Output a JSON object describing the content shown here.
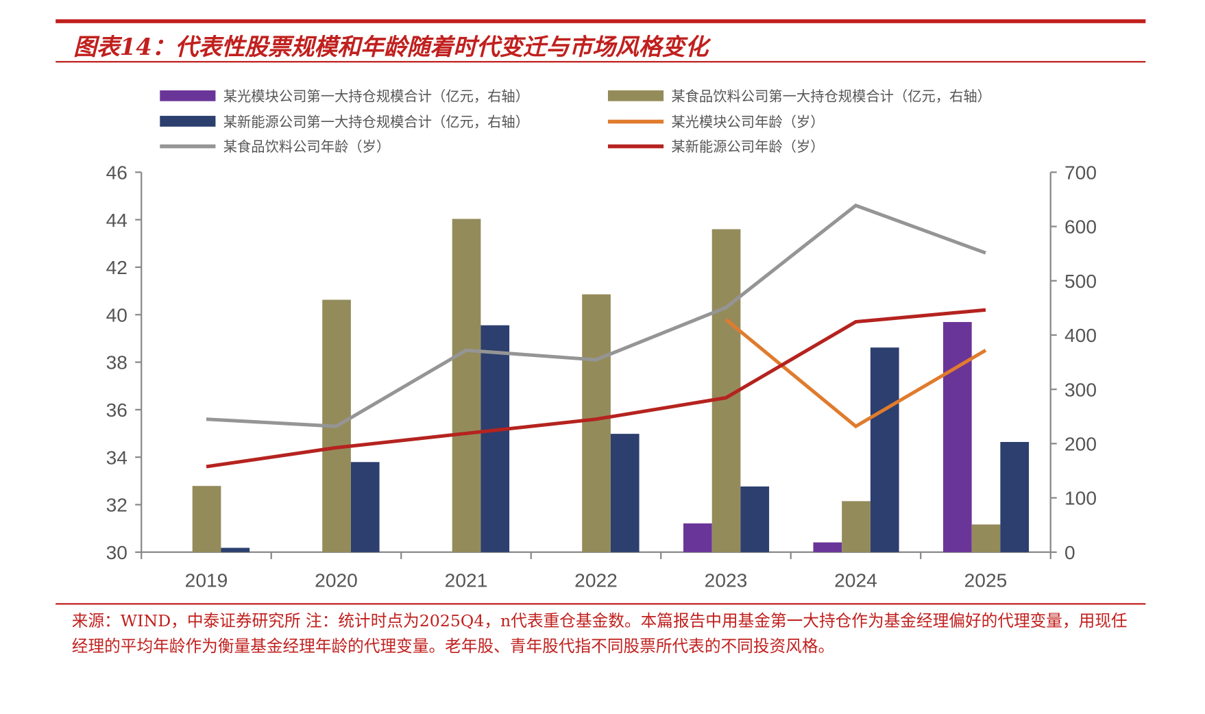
{
  "title": "图表14：代表性股票规模和年龄随着时代变迁与市场风格变化",
  "footnote": "来源：WIND，中泰证券研究所 注：统计时点为2025Q4，n代表重仓基金数。本篇报告中用基金第一大持仓作为基金经理偏好的代理变量，用现任经理的平均年龄作为衡量基金经理年龄的代理变量。老年股、青年股代指不同股票所代表的不同投资风格。",
  "chart_data": {
    "type": "bar+line",
    "categories": [
      "2019",
      "2020",
      "2021",
      "2022",
      "2023",
      "2024",
      "2025"
    ],
    "y_left": {
      "range": [
        30,
        46
      ],
      "ticks": [
        "30",
        "32",
        "34",
        "36",
        "38",
        "40",
        "42",
        "44",
        "46"
      ]
    },
    "y_right": {
      "range": [
        0,
        700
      ],
      "ticks": [
        "0",
        "100",
        "200",
        "300",
        "400",
        "500",
        "600",
        "700"
      ]
    },
    "grid": false,
    "legend_position": "top",
    "bar_series": [
      {
        "name": "某光模块公司第一大持仓规模合计（亿元，右轴）",
        "color": "#6a3598",
        "values": [
          null,
          null,
          null,
          null,
          53,
          18,
          424
        ]
      },
      {
        "name": "某食品饮料公司第一大持仓规模合计（亿元，右轴）",
        "color": "#948b5b",
        "values": [
          122,
          465,
          614,
          475,
          595,
          94,
          51
        ]
      },
      {
        "name": "某新能源公司第一大持仓规模合计（亿元，右轴）",
        "color": "#2c3f6e",
        "values": [
          8,
          166,
          418,
          218,
          121,
          377,
          203
        ]
      }
    ],
    "line_series": [
      {
        "name": "某光模块公司年龄（岁）",
        "color": "#e07b2e",
        "values": [
          null,
          null,
          null,
          null,
          39.8,
          35.3,
          38.5
        ]
      },
      {
        "name": "某食品饮料公司年龄（岁）",
        "color": "#959595",
        "values": [
          35.6,
          35.3,
          38.5,
          38.1,
          40.3,
          44.6,
          42.6
        ]
      },
      {
        "name": "某新能源公司年龄（岁）",
        "color": "#b5231f",
        "values": [
          33.6,
          34.4,
          35.0,
          35.6,
          36.5,
          39.7,
          40.2
        ]
      }
    ]
  }
}
